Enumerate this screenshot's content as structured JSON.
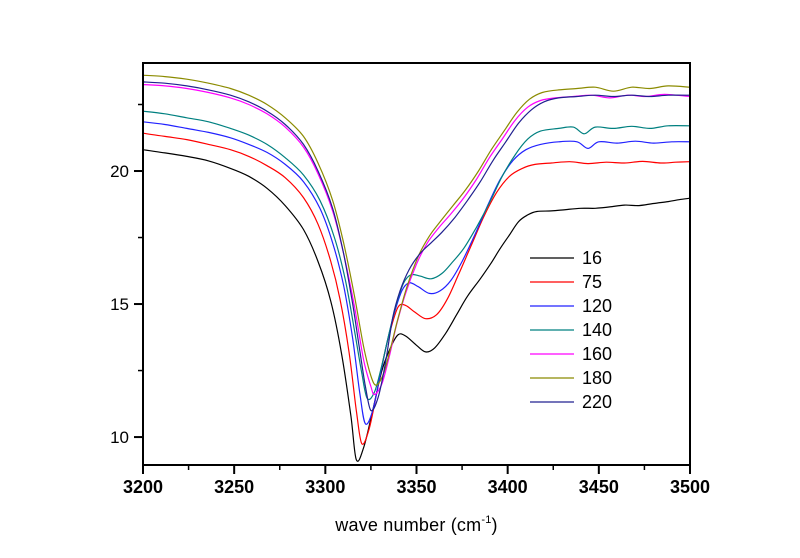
{
  "chart_data": {
    "type": "line",
    "title": "",
    "xlabel_parts": {
      "pre": "wave number (cm",
      "sup": "-1",
      "post": ")"
    },
    "ylabel": "",
    "grid": false,
    "frame": {
      "box": true,
      "tick_direction": "out",
      "axis_color": "#000000"
    },
    "x_axis": {
      "min": 3200,
      "max": 3500,
      "major_ticks": [
        3200,
        3250,
        3300,
        3350,
        3400,
        3450,
        3500
      ],
      "minor_ticks": [
        3225,
        3275,
        3325,
        3375,
        3425,
        3475
      ],
      "tick_labels": [
        "3200",
        "3250",
        "3300",
        "3350",
        "3400",
        "3450",
        "3500"
      ]
    },
    "y_axis": {
      "min": 8.95,
      "max": 24.06,
      "major_ticks": [
        10,
        15,
        20
      ],
      "minor_ticks": [
        12.5,
        17.5,
        22.5
      ],
      "tick_labels": [
        "10",
        "15",
        "20"
      ]
    },
    "legend": {
      "position": "right-center",
      "entries": [
        "16",
        "75",
        "120",
        "140",
        "160",
        "180",
        "220"
      ]
    },
    "series": [
      {
        "name": "16",
        "color": "#000000",
        "points": [
          [
            3200,
            20.8
          ],
          [
            3212,
            20.68
          ],
          [
            3224,
            20.55
          ],
          [
            3236,
            20.38
          ],
          [
            3248,
            20.1
          ],
          [
            3258,
            19.8
          ],
          [
            3268,
            19.35
          ],
          [
            3278,
            18.7
          ],
          [
            3288,
            17.8
          ],
          [
            3296,
            16.6
          ],
          [
            3303,
            15.1
          ],
          [
            3309,
            13.1
          ],
          [
            3314,
            10.8
          ],
          [
            3317,
            9.15
          ],
          [
            3321,
            9.6
          ],
          [
            3326,
            11.0
          ],
          [
            3331,
            12.5
          ],
          [
            3336,
            13.4
          ],
          [
            3340,
            13.85
          ],
          [
            3344,
            13.8
          ],
          [
            3350,
            13.45
          ],
          [
            3355,
            13.2
          ],
          [
            3360,
            13.35
          ],
          [
            3366,
            13.9
          ],
          [
            3372,
            14.6
          ],
          [
            3378,
            15.3
          ],
          [
            3385,
            15.95
          ],
          [
            3391,
            16.55
          ],
          [
            3396,
            17.1
          ],
          [
            3401,
            17.6
          ],
          [
            3406,
            18.1
          ],
          [
            3411,
            18.35
          ],
          [
            3416,
            18.48
          ],
          [
            3424,
            18.5
          ],
          [
            3432,
            18.55
          ],
          [
            3440,
            18.6
          ],
          [
            3448,
            18.6
          ],
          [
            3456,
            18.65
          ],
          [
            3464,
            18.72
          ],
          [
            3472,
            18.7
          ],
          [
            3480,
            18.78
          ],
          [
            3488,
            18.85
          ],
          [
            3494,
            18.92
          ],
          [
            3500,
            18.98
          ]
        ]
      },
      {
        "name": "75",
        "color": "#FF0000",
        "points": [
          [
            3200,
            21.42
          ],
          [
            3212,
            21.3
          ],
          [
            3224,
            21.18
          ],
          [
            3236,
            21.0
          ],
          [
            3248,
            20.8
          ],
          [
            3258,
            20.55
          ],
          [
            3268,
            20.2
          ],
          [
            3278,
            19.75
          ],
          [
            3288,
            19.0
          ],
          [
            3296,
            18.0
          ],
          [
            3303,
            16.6
          ],
          [
            3308,
            15.2
          ],
          [
            3313,
            13.2
          ],
          [
            3317,
            11.0
          ],
          [
            3320,
            9.75
          ],
          [
            3324,
            10.3
          ],
          [
            3328,
            11.6
          ],
          [
            3332,
            13.0
          ],
          [
            3336,
            14.1
          ],
          [
            3340,
            14.9
          ],
          [
            3344,
            14.95
          ],
          [
            3349,
            14.7
          ],
          [
            3355,
            14.45
          ],
          [
            3361,
            14.6
          ],
          [
            3367,
            15.2
          ],
          [
            3373,
            16.1
          ],
          [
            3380,
            17.2
          ],
          [
            3387,
            18.3
          ],
          [
            3394,
            19.2
          ],
          [
            3401,
            19.8
          ],
          [
            3408,
            20.1
          ],
          [
            3415,
            20.25
          ],
          [
            3424,
            20.3
          ],
          [
            3434,
            20.35
          ],
          [
            3444,
            20.28
          ],
          [
            3454,
            20.33
          ],
          [
            3464,
            20.3
          ],
          [
            3474,
            20.36
          ],
          [
            3484,
            20.3
          ],
          [
            3492,
            20.33
          ],
          [
            3500,
            20.35
          ]
        ]
      },
      {
        "name": "120",
        "color": "#2222FF",
        "points": [
          [
            3200,
            21.85
          ],
          [
            3212,
            21.75
          ],
          [
            3224,
            21.6
          ],
          [
            3236,
            21.45
          ],
          [
            3248,
            21.25
          ],
          [
            3258,
            21.0
          ],
          [
            3268,
            20.7
          ],
          [
            3278,
            20.25
          ],
          [
            3288,
            19.6
          ],
          [
            3297,
            18.6
          ],
          [
            3304,
            17.3
          ],
          [
            3310,
            15.7
          ],
          [
            3315,
            13.7
          ],
          [
            3319,
            11.6
          ],
          [
            3322,
            10.5
          ],
          [
            3326,
            11.0
          ],
          [
            3330,
            12.3
          ],
          [
            3334,
            13.6
          ],
          [
            3338,
            14.7
          ],
          [
            3342,
            15.5
          ],
          [
            3346,
            15.8
          ],
          [
            3351,
            15.65
          ],
          [
            3357,
            15.4
          ],
          [
            3363,
            15.5
          ],
          [
            3369,
            15.9
          ],
          [
            3375,
            16.6
          ],
          [
            3382,
            17.6
          ],
          [
            3389,
            18.7
          ],
          [
            3396,
            19.7
          ],
          [
            3403,
            20.4
          ],
          [
            3410,
            20.8
          ],
          [
            3418,
            21.0
          ],
          [
            3428,
            21.1
          ],
          [
            3438,
            21.1
          ],
          [
            3444,
            20.85
          ],
          [
            3450,
            21.1
          ],
          [
            3460,
            21.05
          ],
          [
            3470,
            21.12
          ],
          [
            3480,
            21.05
          ],
          [
            3490,
            21.1
          ],
          [
            3500,
            21.1
          ]
        ]
      },
      {
        "name": "140",
        "color": "#008080",
        "points": [
          [
            3200,
            22.25
          ],
          [
            3212,
            22.15
          ],
          [
            3224,
            22.0
          ],
          [
            3236,
            21.85
          ],
          [
            3248,
            21.6
          ],
          [
            3258,
            21.35
          ],
          [
            3268,
            21.0
          ],
          [
            3278,
            20.5
          ],
          [
            3288,
            19.85
          ],
          [
            3297,
            18.9
          ],
          [
            3305,
            17.5
          ],
          [
            3311,
            15.9
          ],
          [
            3316,
            14.0
          ],
          [
            3320,
            12.4
          ],
          [
            3323,
            11.45
          ],
          [
            3327,
            11.7
          ],
          [
            3331,
            12.7
          ],
          [
            3335,
            13.9
          ],
          [
            3339,
            15.0
          ],
          [
            3343,
            15.8
          ],
          [
            3347,
            16.1
          ],
          [
            3352,
            16.05
          ],
          [
            3358,
            15.95
          ],
          [
            3364,
            16.15
          ],
          [
            3370,
            16.6
          ],
          [
            3376,
            17.1
          ],
          [
            3383,
            17.9
          ],
          [
            3390,
            18.8
          ],
          [
            3397,
            19.8
          ],
          [
            3404,
            20.6
          ],
          [
            3411,
            21.2
          ],
          [
            3418,
            21.5
          ],
          [
            3428,
            21.6
          ],
          [
            3436,
            21.65
          ],
          [
            3442,
            21.4
          ],
          [
            3448,
            21.65
          ],
          [
            3458,
            21.6
          ],
          [
            3468,
            21.68
          ],
          [
            3478,
            21.6
          ],
          [
            3488,
            21.7
          ],
          [
            3500,
            21.7
          ]
        ]
      },
      {
        "name": "160",
        "color": "#FF00FF",
        "points": [
          [
            3200,
            23.25
          ],
          [
            3212,
            23.2
          ],
          [
            3224,
            23.1
          ],
          [
            3236,
            22.95
          ],
          [
            3248,
            22.75
          ],
          [
            3258,
            22.5
          ],
          [
            3268,
            22.15
          ],
          [
            3278,
            21.65
          ],
          [
            3288,
            20.9
          ],
          [
            3296,
            19.9
          ],
          [
            3304,
            18.5
          ],
          [
            3310,
            16.9
          ],
          [
            3316,
            14.9
          ],
          [
            3321,
            12.9
          ],
          [
            3325,
            11.9
          ],
          [
            3327,
            11.6
          ],
          [
            3331,
            12.0
          ],
          [
            3335,
            13.0
          ],
          [
            3339,
            14.2
          ],
          [
            3344,
            15.4
          ],
          [
            3350,
            16.5
          ],
          [
            3356,
            17.3
          ],
          [
            3362,
            17.85
          ],
          [
            3369,
            18.4
          ],
          [
            3376,
            19.0
          ],
          [
            3383,
            19.7
          ],
          [
            3390,
            20.5
          ],
          [
            3397,
            21.2
          ],
          [
            3404,
            21.9
          ],
          [
            3411,
            22.4
          ],
          [
            3418,
            22.65
          ],
          [
            3426,
            22.75
          ],
          [
            3436,
            22.8
          ],
          [
            3446,
            22.85
          ],
          [
            3456,
            22.75
          ],
          [
            3466,
            22.85
          ],
          [
            3476,
            22.8
          ],
          [
            3486,
            22.88
          ],
          [
            3500,
            22.8
          ]
        ]
      },
      {
        "name": "180",
        "color": "#8B8B00",
        "points": [
          [
            3200,
            23.6
          ],
          [
            3212,
            23.55
          ],
          [
            3224,
            23.45
          ],
          [
            3236,
            23.3
          ],
          [
            3248,
            23.1
          ],
          [
            3258,
            22.85
          ],
          [
            3268,
            22.5
          ],
          [
            3278,
            22.0
          ],
          [
            3288,
            21.3
          ],
          [
            3296,
            20.3
          ],
          [
            3304,
            18.9
          ],
          [
            3310,
            17.3
          ],
          [
            3316,
            15.3
          ],
          [
            3321,
            13.4
          ],
          [
            3325,
            12.3
          ],
          [
            3328,
            11.95
          ],
          [
            3332,
            12.4
          ],
          [
            3336,
            13.4
          ],
          [
            3340,
            14.5
          ],
          [
            3345,
            15.7
          ],
          [
            3351,
            16.8
          ],
          [
            3357,
            17.55
          ],
          [
            3363,
            18.1
          ],
          [
            3370,
            18.7
          ],
          [
            3377,
            19.3
          ],
          [
            3384,
            20.0
          ],
          [
            3391,
            20.8
          ],
          [
            3398,
            21.5
          ],
          [
            3405,
            22.2
          ],
          [
            3412,
            22.7
          ],
          [
            3419,
            22.95
          ],
          [
            3428,
            23.05
          ],
          [
            3438,
            23.1
          ],
          [
            3448,
            23.15
          ],
          [
            3458,
            23.0
          ],
          [
            3468,
            23.15
          ],
          [
            3478,
            23.1
          ],
          [
            3488,
            23.2
          ],
          [
            3500,
            23.15
          ]
        ]
      },
      {
        "name": "220",
        "color": "#202090",
        "points": [
          [
            3200,
            23.35
          ],
          [
            3212,
            23.3
          ],
          [
            3224,
            23.2
          ],
          [
            3236,
            23.05
          ],
          [
            3248,
            22.85
          ],
          [
            3258,
            22.6
          ],
          [
            3268,
            22.25
          ],
          [
            3278,
            21.75
          ],
          [
            3288,
            21.0
          ],
          [
            3296,
            20.0
          ],
          [
            3304,
            18.6
          ],
          [
            3310,
            16.9
          ],
          [
            3315,
            15.0
          ],
          [
            3319,
            13.2
          ],
          [
            3322,
            11.9
          ],
          [
            3325,
            11.0
          ],
          [
            3329,
            11.5
          ],
          [
            3333,
            12.8
          ],
          [
            3337,
            14.5
          ],
          [
            3341,
            15.5
          ],
          [
            3346,
            16.3
          ],
          [
            3352,
            16.9
          ],
          [
            3358,
            17.3
          ],
          [
            3364,
            17.7
          ],
          [
            3371,
            18.25
          ],
          [
            3378,
            18.9
          ],
          [
            3385,
            19.6
          ],
          [
            3392,
            20.4
          ],
          [
            3399,
            21.1
          ],
          [
            3406,
            21.8
          ],
          [
            3413,
            22.3
          ],
          [
            3420,
            22.6
          ],
          [
            3428,
            22.75
          ],
          [
            3438,
            22.8
          ],
          [
            3448,
            22.85
          ],
          [
            3458,
            22.8
          ],
          [
            3468,
            22.85
          ],
          [
            3478,
            22.8
          ],
          [
            3488,
            22.85
          ],
          [
            3500,
            22.85
          ]
        ]
      }
    ]
  }
}
